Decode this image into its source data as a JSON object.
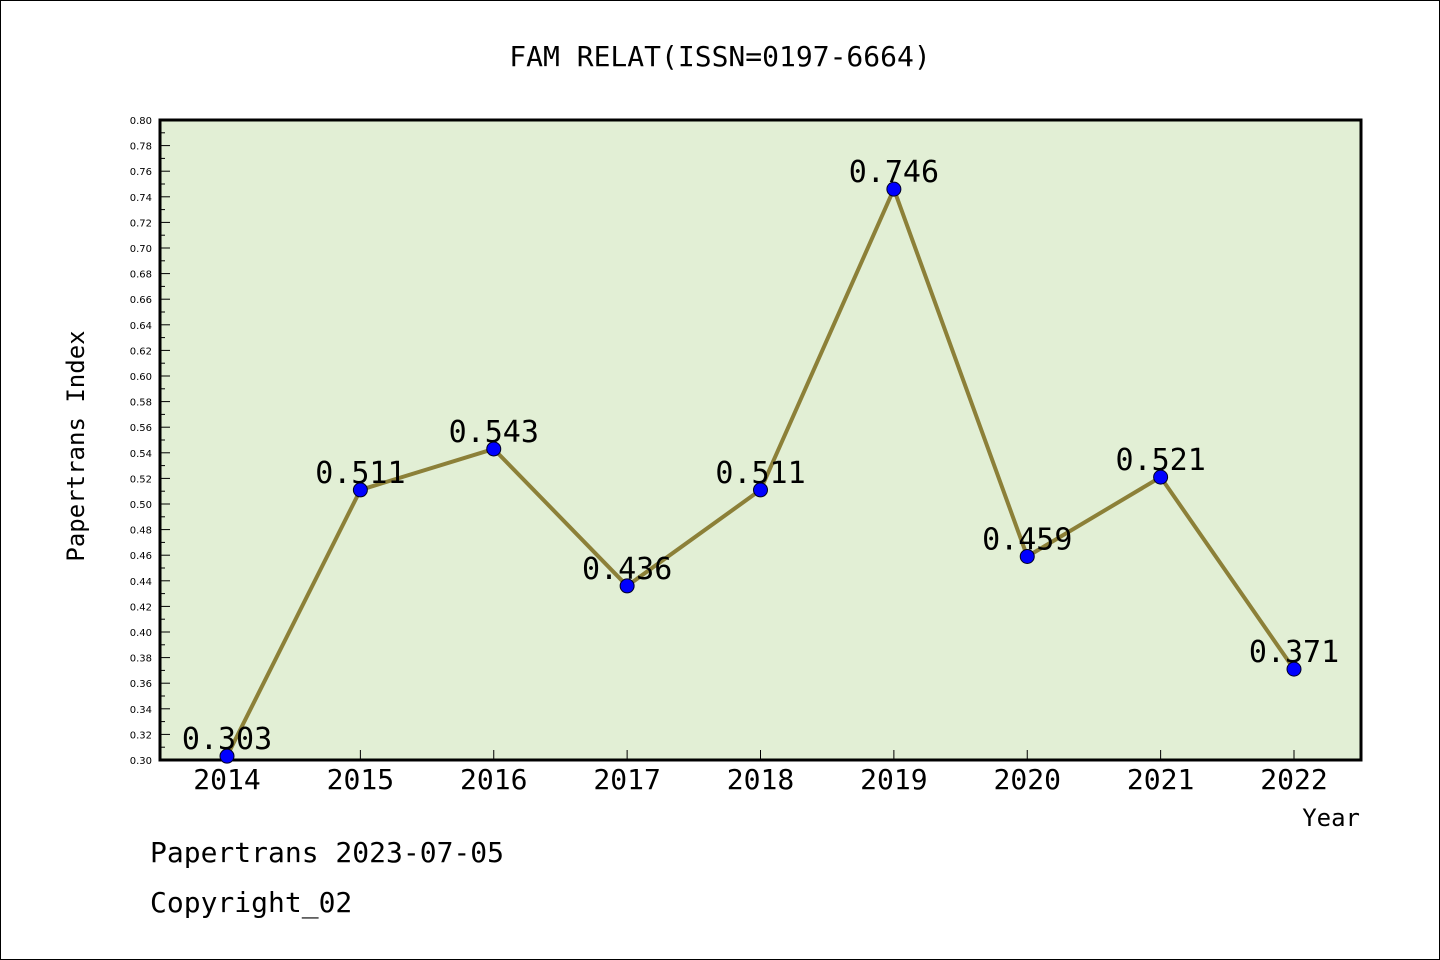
{
  "chart_data": {
    "type": "line",
    "title": "FAM RELAT(ISSN=0197-6664)",
    "xlabel": "Year",
    "ylabel": "Papertrans Index",
    "categories": [
      "2014",
      "2015",
      "2016",
      "2017",
      "2018",
      "2019",
      "2020",
      "2021",
      "2022"
    ],
    "series": [
      {
        "values": [
          0.303,
          0.511,
          0.543,
          0.436,
          0.511,
          0.746,
          0.459,
          0.521,
          0.371
        ],
        "labels": [
          "0.303",
          "0.511",
          "0.543",
          "0.436",
          "0.511",
          "0.746",
          "0.459",
          "0.521",
          "0.371"
        ]
      }
    ],
    "ylim": [
      0.3,
      0.8
    ],
    "yticks": [
      "0.30",
      "0.32",
      "0.34",
      "0.36",
      "0.38",
      "0.40",
      "0.42",
      "0.44",
      "0.46",
      "0.48",
      "0.50",
      "0.52",
      "0.54",
      "0.56",
      "0.58",
      "0.60",
      "0.62",
      "0.64",
      "0.66",
      "0.68",
      "0.70",
      "0.72",
      "0.74",
      "0.76",
      "0.78",
      "0.80"
    ],
    "grid": false,
    "colors": {
      "plot_background": "#e2efd5",
      "line": "#8c8038",
      "marker": "#0000ff"
    }
  },
  "footer": {
    "date_line": "Papertrans 2023-07-05",
    "copyright": "Copyright_02"
  }
}
